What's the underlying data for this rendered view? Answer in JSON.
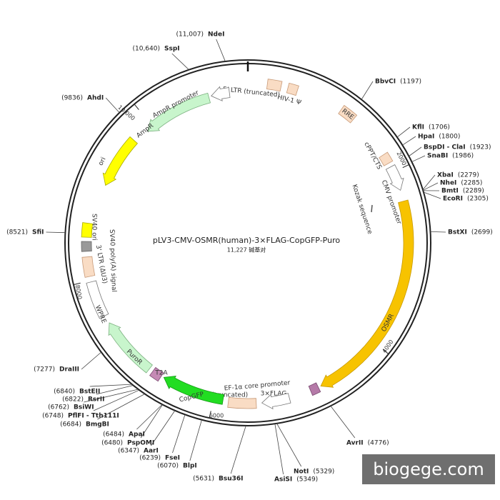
{
  "title": "pLV3-CMV-OSMR(human)-3×FLAG-CopGFP-Puro",
  "subtitle": "11,227 碱基对",
  "sites": [
    {
      "name": "NdeI",
      "position": "(11,007)"
    },
    {
      "name": "SspI",
      "position": "(10,640)"
    },
    {
      "name": "AhdI",
      "position": "(9836)"
    },
    {
      "name": "BbvCI",
      "position": "(1197)"
    },
    {
      "name": "KflI",
      "position": "(1706)"
    },
    {
      "name": "HpaI",
      "position": "(1800)"
    },
    {
      "name": "BspDI - ClaI",
      "position": "(1923)"
    },
    {
      "name": "SnaBI",
      "position": "(1986)"
    },
    {
      "name": "XbaI",
      "position": "(2279)"
    },
    {
      "name": "NheI",
      "position": "(2285)"
    },
    {
      "name": "BmtI",
      "position": "(2289)"
    },
    {
      "name": "EcoRI",
      "position": "(2305)"
    },
    {
      "name": "BstXI",
      "position": "(2699)"
    },
    {
      "name": "AvrII",
      "position": "(4776)"
    },
    {
      "name": "NotI",
      "position": "(5329)"
    },
    {
      "name": "AsiSI",
      "position": "(5349)"
    },
    {
      "name": "Bsu36I",
      "position": "(5631)"
    },
    {
      "name": "BlpI",
      "position": "(6070)"
    },
    {
      "name": "FseI",
      "position": "(6239)"
    },
    {
      "name": "AarI",
      "position": "(6347)"
    },
    {
      "name": "PspOMI",
      "position": "(6480)"
    },
    {
      "name": "ApaI",
      "position": "(6484)"
    },
    {
      "name": "BmgBI",
      "position": "(6684)"
    },
    {
      "name": "PflFI - Tth111I",
      "position": "(6748)"
    },
    {
      "name": "BsiWI",
      "position": "(6762)"
    },
    {
      "name": "RsrII",
      "position": "(6822)"
    },
    {
      "name": "BstEII",
      "position": "(6840)"
    },
    {
      "name": "DraIII",
      "position": "(7277)"
    },
    {
      "name": "SfiI",
      "position": "(8521)"
    }
  ],
  "features": [
    {
      "label": "5' LTR (truncated)"
    },
    {
      "label": "HIV-1 Ψ"
    },
    {
      "label": "RRE"
    },
    {
      "label": "cPPT/CTS"
    },
    {
      "label": "CMV promoter"
    },
    {
      "label": "Kozak sequence"
    },
    {
      "label": "OSMR"
    },
    {
      "label": "3×FLAG"
    },
    {
      "label": "EF-1α core promoter"
    },
    {
      "label": "5' LTR (truncated)"
    },
    {
      "label": "CopGFP"
    },
    {
      "label": "T2A"
    },
    {
      "label": "PuroR"
    },
    {
      "label": "WPRE"
    },
    {
      "label": "3' LTR (ΔU3)"
    },
    {
      "label": "SV40 poly(A) signal"
    },
    {
      "label": "SV40 ori"
    },
    {
      "label": "ori"
    },
    {
      "label": "AmpR"
    },
    {
      "label": "AmpR promoter"
    }
  ],
  "ticks": [
    "2000",
    "4000",
    "6000",
    "8000",
    "10,000"
  ],
  "watermark": "biogege.com"
}
